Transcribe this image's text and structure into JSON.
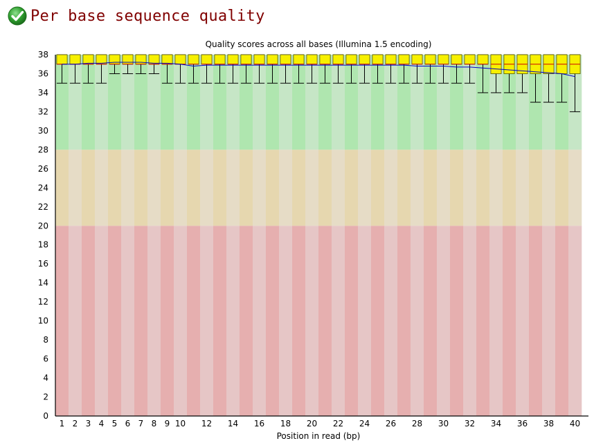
{
  "header": {
    "title": "Per base sequence quality",
    "status_icon": "check-circle-icon",
    "status_color": "#2e9e2e"
  },
  "chart_data": {
    "type": "box",
    "title": "Quality scores across all bases (Illumina 1.5 encoding)",
    "xlabel": "Position in read (bp)",
    "ylabel": "",
    "ylim": [
      0,
      38
    ],
    "yticks": [
      0,
      2,
      4,
      6,
      8,
      10,
      12,
      14,
      16,
      18,
      20,
      22,
      24,
      26,
      28,
      30,
      32,
      34,
      36,
      38
    ],
    "categories": [
      "1",
      "2",
      "3",
      "4",
      "5",
      "6",
      "7",
      "8",
      "9",
      "10",
      "11",
      "12",
      "13",
      "14",
      "15",
      "16",
      "17",
      "18",
      "19",
      "20",
      "21",
      "22",
      "23",
      "24",
      "25",
      "26",
      "27",
      "28",
      "29",
      "30",
      "31",
      "32",
      "33",
      "34",
      "35",
      "36",
      "37",
      "38",
      "39",
      "40"
    ],
    "xtick_labels": [
      "1",
      "2",
      "3",
      "4",
      "5",
      "6",
      "7",
      "8",
      "9",
      "10",
      "12",
      "14",
      "16",
      "18",
      "20",
      "22",
      "24",
      "26",
      "28",
      "30",
      "32",
      "34",
      "36",
      "38",
      "40"
    ],
    "boxes": [
      {
        "whisker_low": 35,
        "q1": 37,
        "median": 37,
        "q3": 38,
        "whisker_high": 38,
        "mean": 37.0
      },
      {
        "whisker_low": 35,
        "q1": 37,
        "median": 37,
        "q3": 38,
        "whisker_high": 38,
        "mean": 37.0
      },
      {
        "whisker_low": 35,
        "q1": 37,
        "median": 37,
        "q3": 38,
        "whisker_high": 38,
        "mean": 37.1
      },
      {
        "whisker_low": 35,
        "q1": 37,
        "median": 37,
        "q3": 38,
        "whisker_high": 38,
        "mean": 37.1
      },
      {
        "whisker_low": 36,
        "q1": 37,
        "median": 37,
        "q3": 38,
        "whisker_high": 38,
        "mean": 37.2
      },
      {
        "whisker_low": 36,
        "q1": 37,
        "median": 37,
        "q3": 38,
        "whisker_high": 38,
        "mean": 37.2
      },
      {
        "whisker_low": 36,
        "q1": 37,
        "median": 37,
        "q3": 38,
        "whisker_high": 38,
        "mean": 37.2
      },
      {
        "whisker_low": 36,
        "q1": 37,
        "median": 37,
        "q3": 38,
        "whisker_high": 38,
        "mean": 37.1
      },
      {
        "whisker_low": 35,
        "q1": 37,
        "median": 37,
        "q3": 38,
        "whisker_high": 38,
        "mean": 37.1
      },
      {
        "whisker_low": 35,
        "q1": 37,
        "median": 37,
        "q3": 38,
        "whisker_high": 38,
        "mean": 37.0
      },
      {
        "whisker_low": 35,
        "q1": 37,
        "median": 37,
        "q3": 38,
        "whisker_high": 38,
        "mean": 36.8
      },
      {
        "whisker_low": 35,
        "q1": 37,
        "median": 37,
        "q3": 38,
        "whisker_high": 38,
        "mean": 36.9
      },
      {
        "whisker_low": 35,
        "q1": 37,
        "median": 37,
        "q3": 38,
        "whisker_high": 38,
        "mean": 36.9
      },
      {
        "whisker_low": 35,
        "q1": 37,
        "median": 37,
        "q3": 38,
        "whisker_high": 38,
        "mean": 36.9
      },
      {
        "whisker_low": 35,
        "q1": 37,
        "median": 37,
        "q3": 38,
        "whisker_high": 38,
        "mean": 36.9
      },
      {
        "whisker_low": 35,
        "q1": 37,
        "median": 37,
        "q3": 38,
        "whisker_high": 38,
        "mean": 36.9
      },
      {
        "whisker_low": 35,
        "q1": 37,
        "median": 37,
        "q3": 38,
        "whisker_high": 38,
        "mean": 36.9
      },
      {
        "whisker_low": 35,
        "q1": 37,
        "median": 37,
        "q3": 38,
        "whisker_high": 38,
        "mean": 36.9
      },
      {
        "whisker_low": 35,
        "q1": 37,
        "median": 37,
        "q3": 38,
        "whisker_high": 38,
        "mean": 36.9
      },
      {
        "whisker_low": 35,
        "q1": 37,
        "median": 37,
        "q3": 38,
        "whisker_high": 38,
        "mean": 36.9
      },
      {
        "whisker_low": 35,
        "q1": 37,
        "median": 37,
        "q3": 38,
        "whisker_high": 38,
        "mean": 36.9
      },
      {
        "whisker_low": 35,
        "q1": 37,
        "median": 37,
        "q3": 38,
        "whisker_high": 38,
        "mean": 36.9
      },
      {
        "whisker_low": 35,
        "q1": 37,
        "median": 37,
        "q3": 38,
        "whisker_high": 38,
        "mean": 36.9
      },
      {
        "whisker_low": 35,
        "q1": 37,
        "median": 37,
        "q3": 38,
        "whisker_high": 38,
        "mean": 36.9
      },
      {
        "whisker_low": 35,
        "q1": 37,
        "median": 37,
        "q3": 38,
        "whisker_high": 38,
        "mean": 36.9
      },
      {
        "whisker_low": 35,
        "q1": 37,
        "median": 37,
        "q3": 38,
        "whisker_high": 38,
        "mean": 36.9
      },
      {
        "whisker_low": 35,
        "q1": 37,
        "median": 37,
        "q3": 38,
        "whisker_high": 38,
        "mean": 36.9
      },
      {
        "whisker_low": 35,
        "q1": 37,
        "median": 37,
        "q3": 38,
        "whisker_high": 38,
        "mean": 36.8
      },
      {
        "whisker_low": 35,
        "q1": 37,
        "median": 37,
        "q3": 38,
        "whisker_high": 38,
        "mean": 36.8
      },
      {
        "whisker_low": 35,
        "q1": 37,
        "median": 37,
        "q3": 38,
        "whisker_high": 38,
        "mean": 36.8
      },
      {
        "whisker_low": 35,
        "q1": 37,
        "median": 37,
        "q3": 38,
        "whisker_high": 38,
        "mean": 36.7
      },
      {
        "whisker_low": 35,
        "q1": 37,
        "median": 37,
        "q3": 38,
        "whisker_high": 38,
        "mean": 36.7
      },
      {
        "whisker_low": 34,
        "q1": 37,
        "median": 37,
        "q3": 38,
        "whisker_high": 38,
        "mean": 36.6
      },
      {
        "whisker_low": 34,
        "q1": 36,
        "median": 37,
        "q3": 38,
        "whisker_high": 38,
        "mean": 36.5
      },
      {
        "whisker_low": 34,
        "q1": 36,
        "median": 37,
        "q3": 38,
        "whisker_high": 38,
        "mean": 36.4
      },
      {
        "whisker_low": 34,
        "q1": 36,
        "median": 37,
        "q3": 38,
        "whisker_high": 38,
        "mean": 36.3
      },
      {
        "whisker_low": 33,
        "q1": 36,
        "median": 37,
        "q3": 38,
        "whisker_high": 38,
        "mean": 36.2
      },
      {
        "whisker_low": 33,
        "q1": 36,
        "median": 37,
        "q3": 38,
        "whisker_high": 38,
        "mean": 36.1
      },
      {
        "whisker_low": 33,
        "q1": 36,
        "median": 37,
        "q3": 38,
        "whisker_high": 38,
        "mean": 36.0
      },
      {
        "whisker_low": 32,
        "q1": 36,
        "median": 37,
        "q3": 38,
        "whisker_high": 38,
        "mean": 35.7
      }
    ],
    "zones": [
      {
        "from": 28,
        "to": 38,
        "color_dark": "#afe6af",
        "color_light": "#c6e6c6"
      },
      {
        "from": 20,
        "to": 28,
        "color_dark": "#e6d7af",
        "color_light": "#e6dcc6"
      },
      {
        "from": 0,
        "to": 20,
        "color_dark": "#e6afaf",
        "color_light": "#e6c6c6"
      }
    ],
    "colors": {
      "box_fill": "#f7f000",
      "box_stroke": "#555500",
      "median": "#cc0000",
      "mean_line": "#0000cc",
      "whisker": "#000000"
    },
    "grid": false,
    "legend": "none"
  }
}
